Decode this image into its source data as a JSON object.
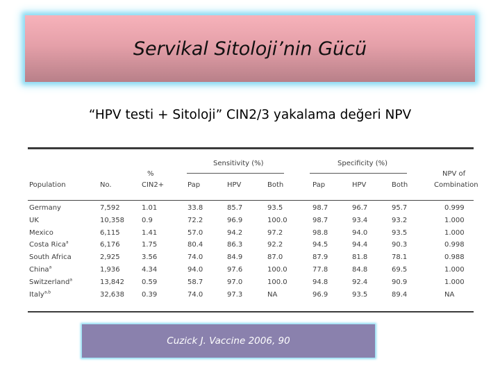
{
  "title": "Servikal Sitoloji’nin Gücü",
  "subtitle": "“HPV testi + Sitoloji” CIN2/3 yakalama değeri NPV",
  "table": {
    "group_sensitivity": "Sensitivity (%)",
    "group_specificity": "Specificity (%)",
    "headers": {
      "population": "Population",
      "no": "No.",
      "cin_pct": "%",
      "cin": "CIN2+",
      "sens_pap": "Pap",
      "sens_hpv": "HPV",
      "sens_both": "Both",
      "spec_pap": "Pap",
      "spec_hpv": "HPV",
      "spec_both": "Both",
      "npv_1": "NPV of",
      "npv_2": "Combination"
    },
    "rows": [
      {
        "population": "Germany",
        "sup": "",
        "no": "7,592",
        "cin": "1.01",
        "sens_pap": "33.8",
        "sens_hpv": "85.7",
        "sens_both": "93.5",
        "spec_pap": "98.7",
        "spec_hpv": "96.7",
        "spec_both": "95.7",
        "npv": "0.999"
      },
      {
        "population": "UK",
        "sup": "",
        "no": "10,358",
        "cin": "0.9",
        "sens_pap": "72.2",
        "sens_hpv": "96.9",
        "sens_both": "100.0",
        "spec_pap": "98.7",
        "spec_hpv": "93.4",
        "spec_both": "93.2",
        "npv": "1.000"
      },
      {
        "population": "Mexico",
        "sup": "",
        "no": "6,115",
        "cin": "1.41",
        "sens_pap": "57.0",
        "sens_hpv": "94.2",
        "sens_both": "97.2",
        "spec_pap": "98.8",
        "spec_hpv": "94.0",
        "spec_both": "93.5",
        "npv": "1.000"
      },
      {
        "population": "Costa Rica",
        "sup": "a",
        "no": "6,176",
        "cin": "1.75",
        "sens_pap": "80.4",
        "sens_hpv": "86.3",
        "sens_both": "92.2",
        "spec_pap": "94.5",
        "spec_hpv": "94.4",
        "spec_both": "90.3",
        "npv": "0.998"
      },
      {
        "population": "South Africa",
        "sup": "",
        "no": "2,925",
        "cin": "3.56",
        "sens_pap": "74.0",
        "sens_hpv": "84.9",
        "sens_both": "87.0",
        "spec_pap": "87.9",
        "spec_hpv": "81.8",
        "spec_both": "78.1",
        "npv": "0.988"
      },
      {
        "population": "China",
        "sup": "a",
        "no": "1,936",
        "cin": "4.34",
        "sens_pap": "94.0",
        "sens_hpv": "97.6",
        "sens_both": "100.0",
        "spec_pap": "77.8",
        "spec_hpv": "84.8",
        "spec_both": "69.5",
        "npv": "1.000"
      },
      {
        "population": "Switzerland",
        "sup": "a",
        "no": "13,842",
        "cin": "0.59",
        "sens_pap": "58.7",
        "sens_hpv": "97.0",
        "sens_both": "100.0",
        "spec_pap": "94.8",
        "spec_hpv": "92.4",
        "spec_both": "90.9",
        "npv": "1.000"
      },
      {
        "population": "Italy",
        "sup": "a,b",
        "no": "32,638",
        "cin": "0.39",
        "sens_pap": "74.0",
        "sens_hpv": "97.3",
        "sens_both": "NA",
        "spec_pap": "96.9",
        "spec_hpv": "93.5",
        "spec_both": "89.4",
        "npv": "NA"
      }
    ]
  },
  "citation": "Cuzick J. Vaccine 2006, 90",
  "colors": {
    "title_bg_top": "#f7b2ba",
    "title_glow": "#8fdcf3",
    "citation_bg": "#8a81ad"
  }
}
